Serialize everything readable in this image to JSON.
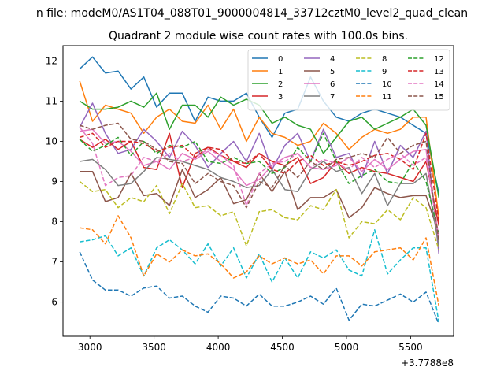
{
  "figure_title": "n file: modeM0/AS1T04_088T01_9000004814_33712cztM0_level2_quad_clean",
  "chart_data": {
    "type": "line",
    "title": "Quadrant 2 module wise count rates with 100.0s bins.",
    "xlabel": "",
    "ylabel": "",
    "x_offset_label": "+3.7788e8",
    "xlim": [
      2790,
      5835
    ],
    "ylim": [
      5.15,
      12.38
    ],
    "x_ticks": [
      3000,
      3500,
      4000,
      4500,
      5000,
      5500
    ],
    "x_tick_labels": [
      "3000",
      "3500",
      "4000",
      "4500",
      "5000",
      "5500"
    ],
    "y_ticks": [
      6,
      7,
      8,
      9,
      10,
      11,
      12
    ],
    "y_tick_labels": [
      "6",
      "7",
      "8",
      "9",
      "10",
      "11",
      "12"
    ],
    "legend": {
      "placement": "top-right",
      "columns": 4
    },
    "x": [
      2920,
      3020,
      3120,
      3220,
      3320,
      3420,
      3520,
      3620,
      3720,
      3820,
      3920,
      4020,
      4120,
      4220,
      4320,
      4420,
      4520,
      4620,
      4720,
      4820,
      4920,
      5020,
      5120,
      5220,
      5320,
      5420,
      5520,
      5620,
      5720
    ],
    "series": [
      {
        "name": "0",
        "color": "#1f77b4",
        "dash": "solid",
        "values": [
          11.8,
          12.1,
          11.7,
          11.75,
          11.3,
          11.6,
          10.85,
          11.2,
          11.2,
          10.5,
          11.1,
          11.0,
          11.0,
          11.2,
          10.6,
          10.1,
          10.7,
          10.8,
          11.6,
          11.0,
          10.6,
          10.5,
          10.7,
          10.8,
          10.7,
          10.6,
          10.4,
          10.2,
          8.7
        ]
      },
      {
        "name": "1",
        "color": "#ff7f0e",
        "dash": "solid",
        "values": [
          11.5,
          10.5,
          10.9,
          10.8,
          10.7,
          10.2,
          10.6,
          10.8,
          10.5,
          10.45,
          10.9,
          10.3,
          10.8,
          10.0,
          10.6,
          10.2,
          10.1,
          9.9,
          10.0,
          10.45,
          10.2,
          9.8,
          10.1,
          10.3,
          10.2,
          10.3,
          10.6,
          10.6,
          8.1
        ]
      },
      {
        "name": "2",
        "color": "#2ca02c",
        "dash": "solid",
        "values": [
          11.0,
          10.8,
          10.8,
          10.85,
          11.0,
          10.85,
          11.2,
          10.3,
          10.9,
          10.9,
          10.6,
          11.1,
          10.9,
          11.05,
          10.9,
          10.45,
          10.6,
          10.4,
          10.3,
          9.7,
          10.1,
          10.5,
          10.6,
          10.3,
          10.45,
          10.6,
          10.8,
          10.4,
          8.6
        ]
      },
      {
        "name": "3",
        "color": "#d62728",
        "dash": "solid",
        "values": [
          10.05,
          9.85,
          10.05,
          9.8,
          10.0,
          9.35,
          9.3,
          10.2,
          8.85,
          9.7,
          9.85,
          9.65,
          9.5,
          9.35,
          9.7,
          9.5,
          9.4,
          9.6,
          8.95,
          9.1,
          9.5,
          9.2,
          9.35,
          9.25,
          9.2,
          9.1,
          9.0,
          9.5,
          7.9
        ]
      },
      {
        "name": "4",
        "color": "#9467bd",
        "dash": "solid",
        "values": [
          10.35,
          10.95,
          10.2,
          9.7,
          9.8,
          10.3,
          10.0,
          9.6,
          10.25,
          9.9,
          9.35,
          9.7,
          10.0,
          9.5,
          10.2,
          9.3,
          9.9,
          10.2,
          9.5,
          10.3,
          9.6,
          9.7,
          9.1,
          10.0,
          9.2,
          9.9,
          9.6,
          10.25,
          7.2
        ]
      },
      {
        "name": "5",
        "color": "#8c564b",
        "dash": "solid",
        "values": [
          9.25,
          9.25,
          8.5,
          8.6,
          9.2,
          8.65,
          8.7,
          8.4,
          9.3,
          8.6,
          8.8,
          9.1,
          8.45,
          8.55,
          9.2,
          8.75,
          9.25,
          8.3,
          8.6,
          8.6,
          8.8,
          8.1,
          8.35,
          8.85,
          8.7,
          8.6,
          8.65,
          8.65,
          7.7
        ]
      },
      {
        "name": "6",
        "color": "#e377c2",
        "dash": "solid",
        "values": [
          10.25,
          10.3,
          9.95,
          10.0,
          9.75,
          9.4,
          9.5,
          9.3,
          9.7,
          9.55,
          9.75,
          9.5,
          9.3,
          8.9,
          9.05,
          9.4,
          9.6,
          9.7,
          9.35,
          9.3,
          9.4,
          9.6,
          9.25,
          9.55,
          9.3,
          9.55,
          9.75,
          9.8,
          7.5
        ]
      },
      {
        "name": "7",
        "color": "#7f7f7f",
        "dash": "solid",
        "values": [
          9.5,
          9.55,
          9.3,
          8.9,
          8.95,
          9.25,
          9.6,
          9.55,
          9.5,
          9.4,
          9.3,
          9.1,
          9.0,
          8.85,
          8.9,
          9.3,
          8.8,
          8.75,
          9.3,
          9.5,
          9.25,
          9.35,
          8.7,
          9.2,
          8.4,
          8.95,
          8.95,
          9.2,
          7.4
        ]
      },
      {
        "name": "8",
        "color": "#bcbd22",
        "dash": "dash",
        "values": [
          9.0,
          8.75,
          8.8,
          8.35,
          8.6,
          8.5,
          8.9,
          8.2,
          8.95,
          8.35,
          8.4,
          8.15,
          8.25,
          7.4,
          8.25,
          8.3,
          8.1,
          8.05,
          8.4,
          8.3,
          8.8,
          7.6,
          8.0,
          7.95,
          8.3,
          8.05,
          8.6,
          8.35,
          7.3
        ]
      },
      {
        "name": "9",
        "color": "#17becf",
        "dash": "dash",
        "values": [
          7.5,
          7.55,
          7.65,
          7.15,
          7.35,
          6.65,
          7.35,
          7.55,
          7.3,
          6.95,
          7.45,
          6.9,
          7.35,
          6.6,
          7.2,
          6.5,
          7.1,
          6.6,
          7.25,
          7.1,
          7.3,
          6.8,
          6.65,
          7.8,
          6.7,
          7.05,
          7.35,
          7.35,
          5.5
        ]
      },
      {
        "name": "10",
        "color": "#1f77b4",
        "dash": "dash",
        "values": [
          7.25,
          6.55,
          6.3,
          6.3,
          6.15,
          6.35,
          6.4,
          6.1,
          6.15,
          5.9,
          5.75,
          6.15,
          6.1,
          5.9,
          6.2,
          5.9,
          5.9,
          6.0,
          6.15,
          5.95,
          6.35,
          5.55,
          5.95,
          5.9,
          6.05,
          6.2,
          6.0,
          6.25,
          5.45
        ]
      },
      {
        "name": "11",
        "color": "#ff7f0e",
        "dash": "dash",
        "values": [
          7.85,
          7.8,
          7.45,
          8.15,
          7.6,
          6.65,
          7.2,
          7.0,
          7.3,
          7.15,
          7.2,
          6.95,
          6.6,
          6.75,
          7.15,
          6.95,
          7.1,
          6.95,
          7.05,
          6.7,
          7.15,
          7.15,
          6.9,
          7.25,
          7.3,
          7.35,
          7.05,
          7.6,
          5.9
        ]
      },
      {
        "name": "12",
        "color": "#2ca02c",
        "dash": "dash",
        "values": [
          10.05,
          9.75,
          9.9,
          10.1,
          9.65,
          10.0,
          9.7,
          9.9,
          9.85,
          10.0,
          9.5,
          9.45,
          9.6,
          9.45,
          9.5,
          9.2,
          9.35,
          9.85,
          9.5,
          10.2,
          9.5,
          8.95,
          9.15,
          9.3,
          9.0,
          8.95,
          9.5,
          9.0,
          7.7
        ]
      },
      {
        "name": "13",
        "color": "#d62728",
        "dash": "dash",
        "values": [
          10.1,
          10.2,
          9.85,
          10.0,
          10.0,
          9.95,
          9.75,
          9.85,
          9.9,
          9.6,
          9.85,
          9.8,
          9.5,
          9.45,
          9.7,
          9.3,
          9.2,
          9.5,
          9.65,
          9.4,
          9.5,
          9.4,
          9.5,
          9.65,
          9.7,
          9.55,
          9.3,
          10.2,
          8.0
        ]
      },
      {
        "name": "14",
        "color": "#e377c2",
        "dash": "dash",
        "values": [
          10.35,
          9.95,
          8.9,
          9.1,
          9.15,
          9.6,
          9.5,
          9.7,
          9.5,
          9.6,
          9.8,
          9.65,
          9.4,
          8.4,
          9.2,
          9.45,
          9.5,
          9.7,
          9.35,
          9.55,
          9.45,
          9.3,
          9.6,
          9.35,
          9.55,
          9.7,
          9.4,
          9.6,
          7.6
        ]
      },
      {
        "name": "15",
        "color": "#8c564b",
        "dash": "dash",
        "values": [
          10.4,
          10.3,
          10.4,
          10.45,
          10.05,
          10.0,
          9.8,
          9.5,
          9.45,
          8.95,
          9.2,
          9.0,
          8.9,
          8.35,
          9.0,
          8.85,
          9.4,
          9.1,
          9.5,
          9.3,
          9.55,
          9.6,
          9.7,
          9.6,
          10.1,
          9.7,
          9.9,
          10.0,
          7.5
        ]
      }
    ]
  }
}
